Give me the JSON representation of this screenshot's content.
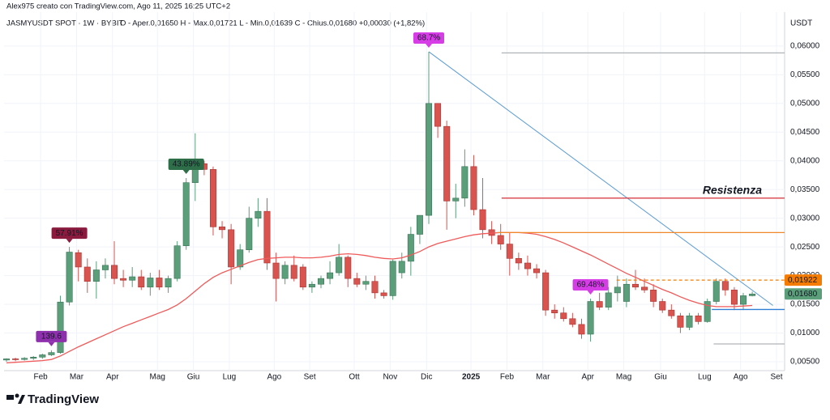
{
  "header": {
    "author": "Alex975 creato con TradingView.com, Ago 11, 2025 16:25 UTC+2",
    "symbol": "JASMYUSDT SPOT · 1W · BYBIT",
    "ohlc": "O - Aper.0,01650   H - Max.0,01721   L - Min.0,01639   C - Chius.0,01680   +0,00030 (+1,82%)"
  },
  "footer": {
    "brand": "TradingView"
  },
  "chart_data": {
    "type": "candlestick",
    "unit": "USDT",
    "up_color": "#5a9e7a",
    "down_color": "#d9534f",
    "open": [
      0.0053,
      0.0055,
      0.0054,
      0.0056,
      0.0058,
      0.0062,
      0.0066,
      0.0154,
      0.024,
      0.0215,
      0.019,
      0.021,
      0.0218,
      0.0195,
      0.0192,
      0.0198,
      0.018,
      0.0196,
      0.018,
      0.0195,
      0.0252,
      0.0362,
      0.0395,
      0.0385,
      0.0285,
      0.028,
      0.0215,
      0.0245,
      0.03,
      0.0312,
      0.0222,
      0.0195,
      0.0218,
      0.0215,
      0.018,
      0.0185,
      0.0195,
      0.0205,
      0.0232,
      0.0195,
      0.0185,
      0.019,
      0.017,
      0.0165,
      0.0205,
      0.0225,
      0.0272,
      0.0305,
      0.05,
      0.046,
      0.033,
      0.0335,
      0.039,
      0.0315,
      0.028,
      0.027,
      0.0255,
      0.023,
      0.0222,
      0.0212,
      0.0205,
      0.014,
      0.0135,
      0.0125,
      0.0115,
      0.0098,
      0.0155,
      0.0145,
      0.017,
      0.0155,
      0.0185,
      0.018,
      0.0175,
      0.0155,
      0.014,
      0.013,
      0.011,
      0.013,
      0.012,
      0.0155,
      0.019,
      0.0175,
      0.015,
      0.0165
    ],
    "high": [
      0.0056,
      0.0057,
      0.0058,
      0.006,
      0.0064,
      0.007,
      0.0165,
      0.025,
      0.0245,
      0.023,
      0.0225,
      0.023,
      0.026,
      0.021,
      0.0215,
      0.021,
      0.0205,
      0.021,
      0.02,
      0.026,
      0.037,
      0.0448,
      0.04,
      0.039,
      0.0295,
      0.029,
      0.0255,
      0.032,
      0.0335,
      0.0335,
      0.024,
      0.0225,
      0.0235,
      0.022,
      0.019,
      0.02,
      0.0225,
      0.0255,
      0.0235,
      0.0205,
      0.02,
      0.02,
      0.0175,
      0.0228,
      0.024,
      0.0285,
      0.0305,
      0.059,
      0.05,
      0.047,
      0.036,
      0.042,
      0.041,
      0.037,
      0.0295,
      0.029,
      0.0275,
      0.024,
      0.0235,
      0.022,
      0.021,
      0.015,
      0.0145,
      0.0135,
      0.0125,
      0.016,
      0.017,
      0.018,
      0.02,
      0.0195,
      0.021,
      0.0195,
      0.0185,
      0.016,
      0.015,
      0.0135,
      0.0135,
      0.0135,
      0.016,
      0.0195,
      0.0195,
      0.018,
      0.017,
      0.01721
    ],
    "low": [
      0.005,
      0.0051,
      0.0052,
      0.0053,
      0.0055,
      0.006,
      0.0064,
      0.0148,
      0.019,
      0.017,
      0.016,
      0.0195,
      0.0185,
      0.018,
      0.018,
      0.0175,
      0.0165,
      0.0175,
      0.017,
      0.019,
      0.0245,
      0.033,
      0.0375,
      0.027,
      0.0265,
      0.0185,
      0.021,
      0.024,
      0.0285,
      0.021,
      0.0155,
      0.0185,
      0.019,
      0.0175,
      0.017,
      0.0178,
      0.0185,
      0.02,
      0.018,
      0.018,
      0.0175,
      0.016,
      0.016,
      0.0158,
      0.0195,
      0.02,
      0.0255,
      0.029,
      0.044,
      0.028,
      0.03,
      0.032,
      0.0305,
      0.0265,
      0.0255,
      0.0245,
      0.02,
      0.021,
      0.02,
      0.0195,
      0.013,
      0.0125,
      0.012,
      0.011,
      0.009,
      0.0085,
      0.014,
      0.014,
      0.0155,
      0.0145,
      0.0175,
      0.017,
      0.0145,
      0.0135,
      0.0125,
      0.01,
      0.0105,
      0.0115,
      0.0118,
      0.015,
      0.0165,
      0.014,
      0.014,
      0.01639
    ],
    "close": [
      0.0055,
      0.0054,
      0.0056,
      0.0058,
      0.0062,
      0.0066,
      0.0154,
      0.0241,
      0.0215,
      0.019,
      0.021,
      0.0218,
      0.0195,
      0.0192,
      0.0198,
      0.018,
      0.0196,
      0.018,
      0.0195,
      0.0252,
      0.0362,
      0.0395,
      0.0385,
      0.0285,
      0.028,
      0.0215,
      0.0245,
      0.03,
      0.0312,
      0.0222,
      0.0195,
      0.0218,
      0.0195,
      0.018,
      0.0185,
      0.0195,
      0.0205,
      0.0232,
      0.0195,
      0.0185,
      0.019,
      0.017,
      0.0165,
      0.0225,
      0.0225,
      0.0272,
      0.0305,
      0.05,
      0.046,
      0.033,
      0.0335,
      0.039,
      0.0315,
      0.028,
      0.027,
      0.0255,
      0.023,
      0.0222,
      0.0212,
      0.0205,
      0.014,
      0.0135,
      0.0125,
      0.0115,
      0.0098,
      0.0155,
      0.0145,
      0.017,
      0.018,
      0.0185,
      0.018,
      0.0175,
      0.0155,
      0.014,
      0.013,
      0.011,
      0.013,
      0.012,
      0.0155,
      0.019,
      0.0175,
      0.015,
      0.0165,
      0.0168
    ],
    "ma": {
      "color": "#f05a5a",
      "values": [
        0.0048,
        0.0049,
        0.005,
        0.0051,
        0.0052,
        0.0054,
        0.006,
        0.0068,
        0.0076,
        0.0083,
        0.009,
        0.0097,
        0.0104,
        0.0111,
        0.0117,
        0.0123,
        0.0129,
        0.0135,
        0.0141,
        0.0149,
        0.016,
        0.0173,
        0.0186,
        0.0197,
        0.0205,
        0.0211,
        0.0217,
        0.0223,
        0.0228,
        0.023,
        0.0231,
        0.0232,
        0.0232,
        0.0231,
        0.0231,
        0.0232,
        0.0234,
        0.0237,
        0.0238,
        0.0237,
        0.0235,
        0.0232,
        0.023,
        0.0229,
        0.0231,
        0.0236,
        0.0242,
        0.025,
        0.0256,
        0.026,
        0.0264,
        0.0268,
        0.0271,
        0.0273,
        0.0274,
        0.0275,
        0.0275,
        0.0275,
        0.0274,
        0.0272,
        0.0268,
        0.0263,
        0.0257,
        0.025,
        0.0243,
        0.0236,
        0.0228,
        0.022,
        0.0212,
        0.0204,
        0.0197,
        0.019,
        0.0183,
        0.0176,
        0.017,
        0.0163,
        0.0157,
        0.0152,
        0.0148,
        0.0146,
        0.0146,
        0.0146,
        0.0147,
        0.0148
      ]
    },
    "xlim": [
      -0.27,
      86.6
    ],
    "ylim": [
      0.00345,
      0.0659
    ],
    "xticks": [
      {
        "value": 3.8,
        "label": "Feb"
      },
      {
        "value": 7.8,
        "label": "Mar"
      },
      {
        "value": 11.8,
        "label": "Apr"
      },
      {
        "value": 16.8,
        "label": "Mag"
      },
      {
        "value": 20.8,
        "label": "Giu"
      },
      {
        "value": 24.8,
        "label": "Lug"
      },
      {
        "value": 29.8,
        "label": "Ago"
      },
      {
        "value": 33.75,
        "label": "Set"
      },
      {
        "value": 38.7,
        "label": "Ott"
      },
      {
        "value": 42.7,
        "label": "Nov"
      },
      {
        "value": 46.75,
        "label": "Dic"
      },
      {
        "value": 51.7,
        "label": "2025"
      },
      {
        "value": 55.7,
        "label": "Feb"
      },
      {
        "value": 59.7,
        "label": "Mar"
      },
      {
        "value": 64.7,
        "label": "Apr"
      },
      {
        "value": 68.7,
        "label": "Mag"
      },
      {
        "value": 72.8,
        "label": "Giu"
      },
      {
        "value": 77.7,
        "label": "Lug"
      },
      {
        "value": 81.7,
        "label": "Ago"
      },
      {
        "value": 85.7,
        "label": "Set"
      }
    ],
    "yticks": [
      {
        "value": 0.06,
        "label": "0,06000"
      },
      {
        "value": 0.055,
        "label": "0,05500"
      },
      {
        "value": 0.05,
        "label": "0,05000"
      },
      {
        "value": 0.045,
        "label": "0,04500"
      },
      {
        "value": 0.04,
        "label": "0,04000"
      },
      {
        "value": 0.035,
        "label": "0,03500"
      },
      {
        "value": 0.03,
        "label": "0,03000"
      },
      {
        "value": 0.025,
        "label": "0,02500"
      },
      {
        "value": 0.02,
        "label": "0,02000"
      },
      {
        "value": 0.015,
        "label": "0,01500"
      },
      {
        "value": 0.01,
        "label": "0,01000"
      },
      {
        "value": 0.005,
        "label": "0,00500"
      }
    ],
    "grid": true,
    "trendline": {
      "from": [
        47,
        0.059
      ],
      "to": [
        85.3,
        0.0148
      ],
      "color": "#5b9bd5"
    },
    "levels": [
      {
        "value": 0.0588,
        "from": 55.1,
        "color": "#b0b3b8",
        "dash": false
      },
      {
        "value": 0.0335,
        "from": 55.1,
        "color": "#d9404a",
        "dash": false,
        "label": "Resistenza"
      },
      {
        "value": 0.0275,
        "from": 54.6,
        "color": "#f0882a",
        "dash": false
      },
      {
        "value": 0.01922,
        "from": 67.9,
        "color": "#f57c00",
        "dash": true,
        "label": "0,01922"
      },
      {
        "value": 0.0141,
        "from": 78.5,
        "color": "#2f7fd6",
        "dash": false
      },
      {
        "value": 0.0081,
        "from": 78.7,
        "color": "#b0b3b8",
        "dash": false
      }
    ],
    "last_price": {
      "value": 0.0168,
      "label": "0,01680",
      "color": "#5a9e7a"
    },
    "annotations": [
      {
        "text": "139.6",
        "candle": 5,
        "color": "#8e2fae"
      },
      {
        "text": "57.91%",
        "candle": 7,
        "color": "#8b1a3f"
      },
      {
        "text": "43.89%",
        "candle": 20,
        "color": "#2e6f4a"
      },
      {
        "text": "68.7%",
        "candle": 47,
        "color": "#d63de6"
      },
      {
        "text": "69.48%",
        "candle": 65,
        "color": "#d63de6"
      }
    ]
  }
}
